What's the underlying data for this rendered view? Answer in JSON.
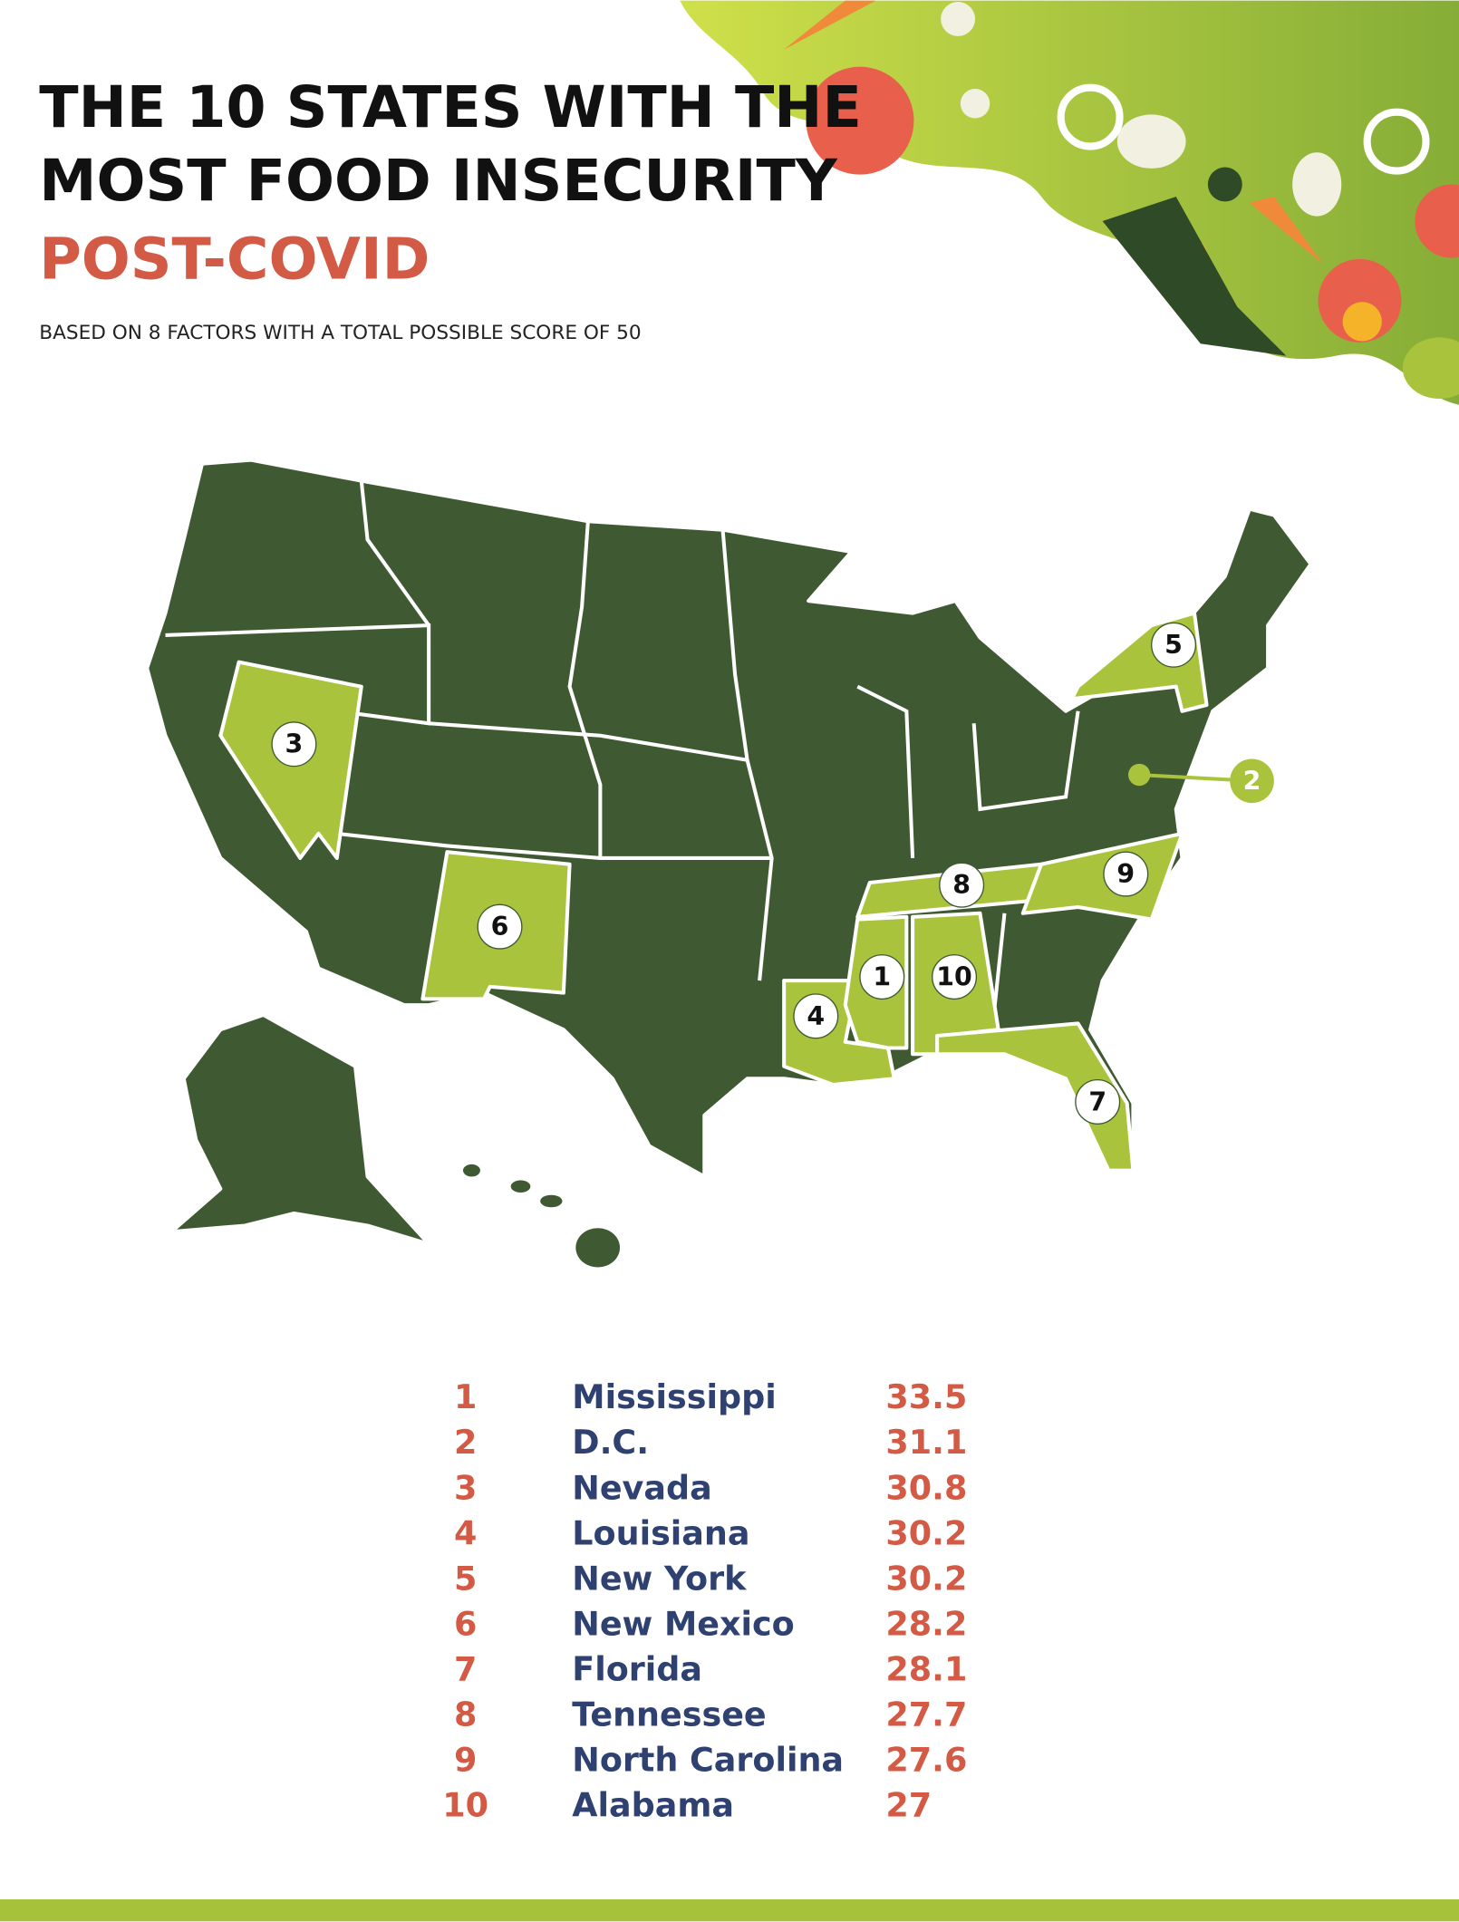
{
  "header": {
    "title_lines": [
      "THE 10 STATES WITH THE",
      "MOST FOOD INSECURITY"
    ],
    "highlight": "POST-COVID",
    "subtitle": "BASED ON 8 FACTORS WITH A TOTAL POSSIBLE SCORE OF 50"
  },
  "table": {
    "rows": [
      {
        "rank": 1,
        "state": "Mississippi",
        "score": 33.5
      },
      {
        "rank": 2,
        "state": "D.C.",
        "score": 31.1
      },
      {
        "rank": 3,
        "state": "Nevada",
        "score": 30.8
      },
      {
        "rank": 4,
        "state": "Louisiana",
        "score": 30.2
      },
      {
        "rank": 5,
        "state": "New York",
        "score": 30.2
      },
      {
        "rank": 6,
        "state": "New Mexico",
        "score": 28.2
      },
      {
        "rank": 7,
        "state": "Florida",
        "score": 28.1
      },
      {
        "rank": 8,
        "state": "Tennessee",
        "score": 27.7
      },
      {
        "rank": 9,
        "state": "North Carolina",
        "score": 27.6
      },
      {
        "rank": 10,
        "state": "Alabama",
        "score": 27
      }
    ]
  }
}
